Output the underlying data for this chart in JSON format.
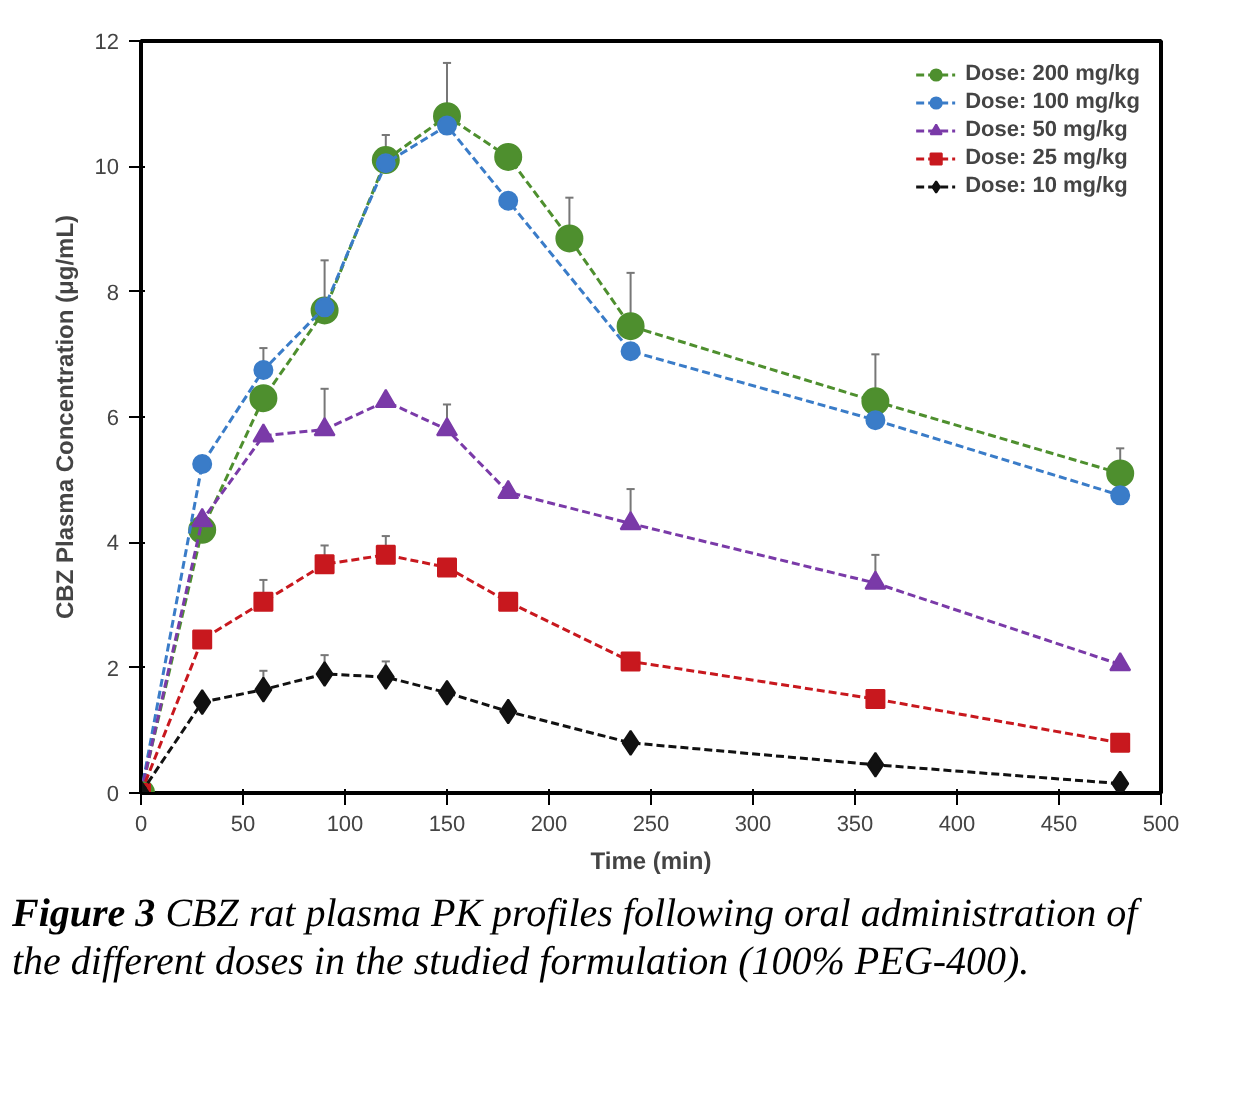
{
  "chart_data": {
    "type": "line",
    "xlabel": "Time (min)",
    "ylabel": "CBZ Plasma Concentration (μg/mL)",
    "xlim": [
      0,
      500
    ],
    "xticks": [
      0,
      50,
      100,
      150,
      200,
      250,
      300,
      350,
      400,
      450,
      500
    ],
    "ylim": [
      0,
      12
    ],
    "yticks": [
      0,
      2,
      4,
      6,
      8,
      10,
      12
    ],
    "grid": false,
    "legend": "top right",
    "line_style": "dashed",
    "series": [
      {
        "name": "Dose: 200 mg/kg",
        "color": "#4e8f2e",
        "marker": "circle",
        "x": [
          0,
          30,
          60,
          90,
          120,
          150,
          180,
          210,
          240,
          360,
          480
        ],
        "values": [
          0,
          4.2,
          6.3,
          7.7,
          10.1,
          10.8,
          10.15,
          8.85,
          7.45,
          6.25,
          5.1
        ],
        "errors": [
          null,
          null,
          null,
          null,
          [
            10.1,
            10.5
          ],
          [
            10.8,
            11.65
          ],
          null,
          [
            8.85,
            9.5
          ],
          [
            7.45,
            8.3
          ],
          [
            6.25,
            7.0
          ],
          [
            5.1,
            5.5
          ]
        ]
      },
      {
        "name": "Dose: 100 mg/kg",
        "color": "#3a7cc8",
        "marker": "circle",
        "x": [
          0,
          30,
          60,
          90,
          120,
          150,
          180,
          240,
          360,
          480
        ],
        "values": [
          0,
          5.25,
          6.75,
          7.75,
          10.05,
          10.65,
          9.45,
          7.05,
          5.95,
          4.75
        ],
        "errors": [
          null,
          null,
          [
            6.75,
            7.1
          ],
          [
            7.75,
            8.5
          ],
          null,
          null,
          null,
          null,
          null,
          null
        ]
      },
      {
        "name": "Dose: 50 mg/kg",
        "color": "#7a3aa8",
        "marker": "triangle",
        "x": [
          0,
          30,
          60,
          90,
          120,
          150,
          180,
          240,
          360,
          480
        ],
        "values": [
          0,
          4.35,
          5.7,
          5.8,
          6.25,
          5.8,
          4.8,
          4.3,
          3.35,
          2.05
        ],
        "errors": [
          null,
          null,
          null,
          [
            5.8,
            6.45
          ],
          null,
          [
            5.8,
            6.2
          ],
          null,
          [
            4.3,
            4.85
          ],
          [
            3.35,
            3.8
          ],
          null
        ]
      },
      {
        "name": "Dose: 25 mg/kg",
        "color": "#c8181e",
        "marker": "square",
        "x": [
          0,
          30,
          60,
          90,
          120,
          150,
          180,
          240,
          360,
          480
        ],
        "values": [
          0,
          2.45,
          3.05,
          3.65,
          3.8,
          3.6,
          3.05,
          2.1,
          1.5,
          0.8
        ],
        "errors": [
          null,
          null,
          [
            3.05,
            3.4
          ],
          [
            3.65,
            3.95
          ],
          [
            3.8,
            4.1
          ],
          null,
          null,
          null,
          null,
          null
        ]
      },
      {
        "name": "Dose: 10 mg/kg",
        "color": "#111111",
        "marker": "diamond",
        "x": [
          0,
          30,
          60,
          90,
          120,
          150,
          180,
          240,
          360,
          480
        ],
        "values": [
          0,
          1.45,
          1.65,
          1.9,
          1.85,
          1.6,
          1.3,
          0.8,
          0.45,
          0.15
        ],
        "errors": [
          null,
          null,
          [
            1.65,
            1.95
          ],
          [
            1.9,
            2.2
          ],
          [
            1.85,
            2.1
          ],
          null,
          null,
          null,
          null,
          null
        ]
      }
    ],
    "annotations": [
      "Figure 3",
      "CBZ rat plasma PK profiles following oral administration of the different doses in the studied formulation (100% PEG-400)."
    ]
  }
}
